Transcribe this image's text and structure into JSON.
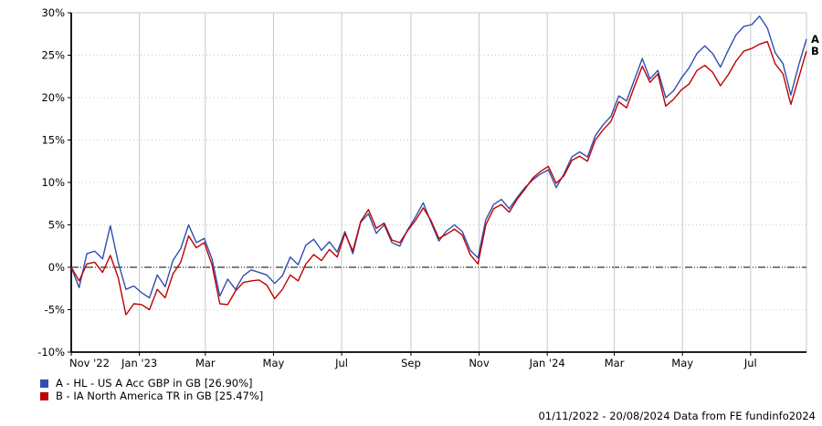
{
  "footer": {
    "text": "01/11/2022 - 20/08/2024 Data from FE fundinfo2024"
  },
  "chart_data": {
    "type": "line",
    "title": "",
    "xlabel": "",
    "ylabel": "",
    "grid": true,
    "legend_position": "bottom-left",
    "ylim": [
      -10,
      30
    ],
    "y_ticks": [
      30,
      25,
      20,
      15,
      10,
      5,
      0,
      -5,
      -10
    ],
    "y_tick_suffix": "%",
    "total_days": 658,
    "x_ticks": [
      {
        "label": "Nov '22",
        "day": 0
      },
      {
        "label": "Jan '23",
        "day": 61
      },
      {
        "label": "Mar",
        "day": 120
      },
      {
        "label": "May",
        "day": 181
      },
      {
        "label": "Jul",
        "day": 242
      },
      {
        "label": "Sep",
        "day": 304
      },
      {
        "label": "Nov",
        "day": 365
      },
      {
        "label": "Jan '24",
        "day": 426
      },
      {
        "label": "Mar",
        "day": 486
      },
      {
        "label": "May",
        "day": 547
      },
      {
        "label": "Jul",
        "day": 608
      }
    ],
    "colors": {
      "grid": "#c8c8c8",
      "axis": "#000000",
      "zero_line": "#000000"
    },
    "x_dates_weekly": [
      "2022-11-01",
      "2022-11-08",
      "2022-11-15",
      "2022-11-22",
      "2022-11-29",
      "2022-12-06",
      "2022-12-13",
      "2022-12-20",
      "2022-12-27",
      "2023-01-03",
      "2023-01-10",
      "2023-01-17",
      "2023-01-24",
      "2023-01-31",
      "2023-02-07",
      "2023-02-14",
      "2023-02-21",
      "2023-02-28",
      "2023-03-07",
      "2023-03-14",
      "2023-03-21",
      "2023-03-28",
      "2023-04-04",
      "2023-04-11",
      "2023-04-18",
      "2023-04-25",
      "2023-05-02",
      "2023-05-09",
      "2023-05-16",
      "2023-05-23",
      "2023-05-30",
      "2023-06-06",
      "2023-06-13",
      "2023-06-20",
      "2023-06-27",
      "2023-07-04",
      "2023-07-11",
      "2023-07-18",
      "2023-07-25",
      "2023-08-01",
      "2023-08-08",
      "2023-08-15",
      "2023-08-22",
      "2023-08-29",
      "2023-09-05",
      "2023-09-12",
      "2023-09-19",
      "2023-09-26",
      "2023-10-03",
      "2023-10-10",
      "2023-10-17",
      "2023-10-24",
      "2023-10-31",
      "2023-11-07",
      "2023-11-14",
      "2023-11-21",
      "2023-11-28",
      "2023-12-05",
      "2023-12-12",
      "2023-12-19",
      "2023-12-26",
      "2024-01-02",
      "2024-01-09",
      "2024-01-16",
      "2024-01-23",
      "2024-01-30",
      "2024-02-06",
      "2024-02-13",
      "2024-02-20",
      "2024-02-27",
      "2024-03-05",
      "2024-03-12",
      "2024-03-19",
      "2024-03-26",
      "2024-04-02",
      "2024-04-09",
      "2024-04-16",
      "2024-04-23",
      "2024-04-30",
      "2024-05-07",
      "2024-05-14",
      "2024-05-21",
      "2024-05-28",
      "2024-06-04",
      "2024-06-11",
      "2024-06-18",
      "2024-06-25",
      "2024-07-02",
      "2024-07-09",
      "2024-07-16",
      "2024-07-23",
      "2024-07-30",
      "2024-08-06",
      "2024-08-13",
      "2024-08-20"
    ],
    "series": [
      {
        "id": "a",
        "end_label": "A",
        "name": "A - HL - US A Acc GBP in GB [26.90%]",
        "final_value_pct": 26.9,
        "color": "#2f4fae",
        "values": [
          0.0,
          -2.4,
          1.6,
          1.9,
          1.0,
          4.9,
          0.6,
          -2.6,
          -2.2,
          -3.0,
          -3.6,
          -0.9,
          -2.3,
          0.8,
          2.2,
          5.0,
          2.9,
          3.4,
          1.0,
          -3.4,
          -1.4,
          -2.6,
          -1.0,
          -0.3,
          -0.6,
          -0.9,
          -1.9,
          -1.0,
          1.2,
          0.3,
          2.6,
          3.3,
          2.0,
          3.0,
          1.8,
          4.2,
          1.6,
          5.3,
          6.3,
          4.0,
          5.0,
          2.9,
          2.5,
          4.4,
          5.9,
          7.6,
          5.3,
          3.1,
          4.3,
          5.0,
          4.2,
          2.0,
          1.1,
          5.6,
          7.4,
          8.0,
          6.9,
          8.2,
          9.4,
          10.3,
          11.0,
          11.5,
          9.4,
          11.0,
          13.0,
          13.6,
          13.0,
          15.5,
          16.8,
          17.8,
          20.2,
          19.6,
          22.1,
          24.6,
          22.2,
          23.2,
          20.0,
          20.8,
          22.3,
          23.5,
          25.2,
          26.1,
          25.2,
          23.6,
          25.6,
          27.4,
          28.4,
          28.6,
          29.6,
          28.2,
          25.3,
          24.0,
          20.3,
          23.8,
          26.9
        ]
      },
      {
        "id": "b",
        "end_label": "B",
        "name": "B - IA North America TR in GB [25.47%]",
        "final_value_pct": 25.47,
        "color": "#c00000",
        "values": [
          0.0,
          -1.6,
          0.4,
          0.6,
          -0.6,
          1.4,
          -1.2,
          -5.6,
          -4.3,
          -4.4,
          -5.0,
          -2.6,
          -3.6,
          -0.8,
          0.6,
          3.7,
          2.3,
          2.9,
          0.3,
          -4.3,
          -4.4,
          -2.8,
          -1.8,
          -1.6,
          -1.5,
          -2.1,
          -3.7,
          -2.6,
          -0.9,
          -1.6,
          0.4,
          1.5,
          0.8,
          2.1,
          1.2,
          4.0,
          1.9,
          5.4,
          6.8,
          4.6,
          5.2,
          3.2,
          2.9,
          4.3,
          5.5,
          7.0,
          5.5,
          3.4,
          3.9,
          4.5,
          3.8,
          1.5,
          0.4,
          5.0,
          6.9,
          7.4,
          6.5,
          8.0,
          9.2,
          10.5,
          11.3,
          11.9,
          9.9,
          10.8,
          12.6,
          13.1,
          12.5,
          15.0,
          16.2,
          17.2,
          19.5,
          18.8,
          21.3,
          23.7,
          21.8,
          22.8,
          19.0,
          19.8,
          20.9,
          21.6,
          23.2,
          23.8,
          23.0,
          21.4,
          22.7,
          24.3,
          25.5,
          25.8,
          26.3,
          26.6,
          24.0,
          22.8,
          19.2,
          22.3,
          25.5
        ]
      }
    ]
  }
}
